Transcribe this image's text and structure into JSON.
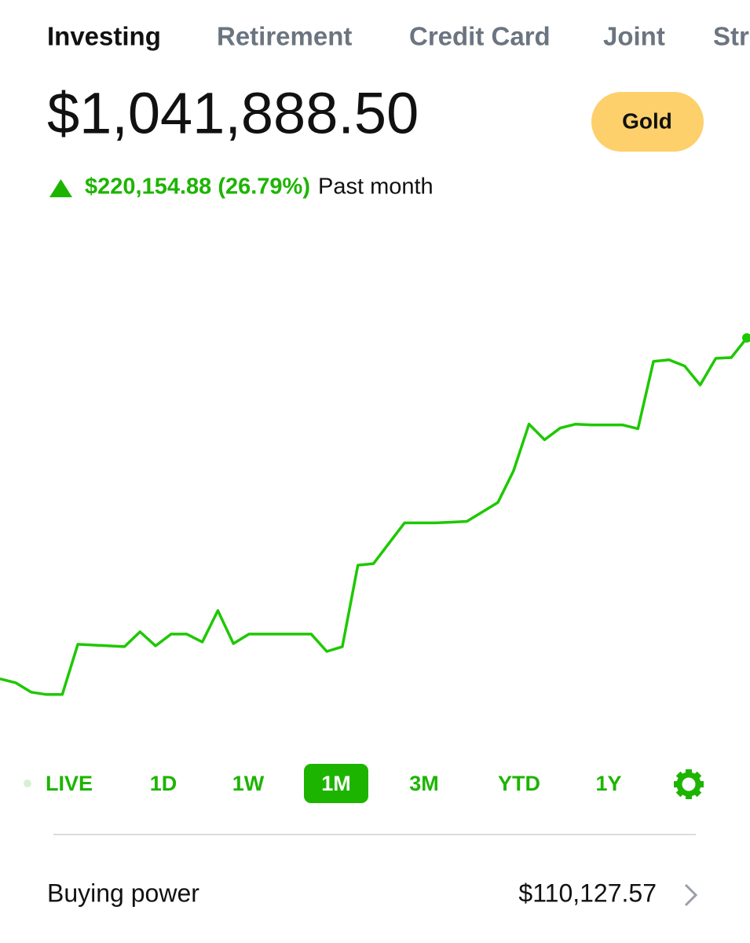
{
  "tabs": [
    "Investing",
    "Retirement",
    "Credit Card",
    "Joint",
    "Str"
  ],
  "balance": "$1,041,888.50",
  "badge": "Gold",
  "change": {
    "amount": "$220,154.88 (26.79%)",
    "period": "Past month"
  },
  "chart_data": {
    "type": "line",
    "color": "#1ec800",
    "ylim": [
      778000,
      1118000
    ],
    "values": [
      821733.62,
      819200,
      813100,
      811600,
      811600,
      844000,
      843500,
      843000,
      842500,
      852100,
      843000,
      850600,
      850600,
      845500,
      865800,
      844500,
      850600,
      850600,
      850600,
      850600,
      850600,
      839400,
      842500,
      895100,
      896100,
      909300,
      922400,
      922400,
      922400,
      922900,
      923400,
      929500,
      935600,
      955900,
      986200,
      976100,
      983700,
      986200,
      985700,
      985700,
      985700,
      983200,
      1026700,
      1027700,
      1023700,
      1011500,
      1028700,
      1029200,
      1041888.5
    ]
  },
  "ranges": [
    "LIVE",
    "1D",
    "1W",
    "1M",
    "3M",
    "YTD",
    "1Y"
  ],
  "selected_range": "1M",
  "buying_power": {
    "label": "Buying power",
    "value": "$110,127.57"
  }
}
